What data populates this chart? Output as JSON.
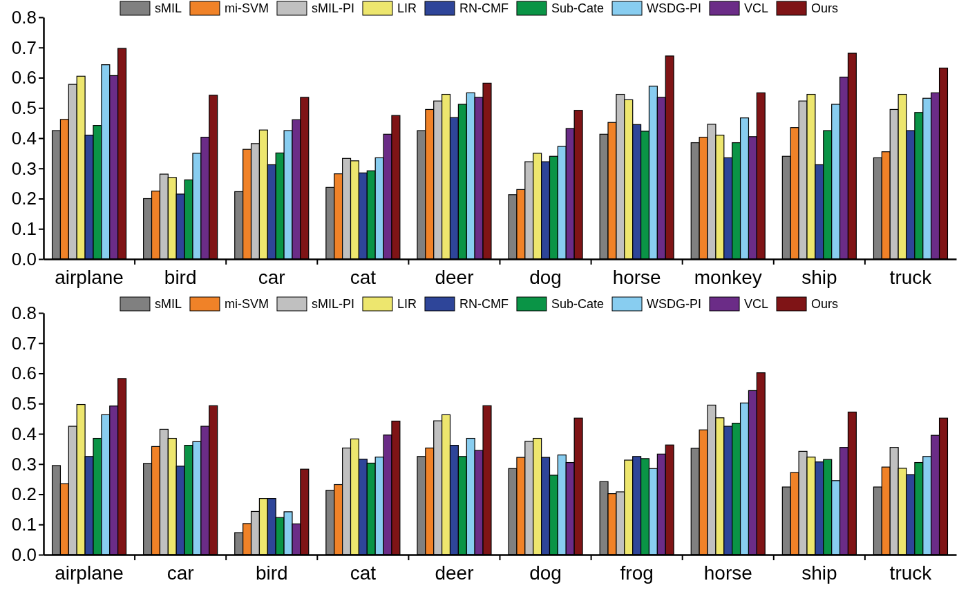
{
  "chart_data": [
    {
      "type": "bar",
      "categories": [
        "airplane",
        "bird",
        "car",
        "cat",
        "deer",
        "dog",
        "horse",
        "monkey",
        "ship",
        "truck"
      ],
      "ylim": [
        0,
        0.8
      ],
      "yticks": [
        {
          "value": 0,
          "label": "0.0"
        },
        {
          "value": 0.1,
          "label": "0.1"
        },
        {
          "value": 0.2,
          "label": "0.2"
        },
        {
          "value": 0.3,
          "label": "0.3"
        },
        {
          "value": 0.4,
          "label": "0.4"
        },
        {
          "value": 0.5,
          "label": "0.5"
        },
        {
          "value": 0.6,
          "label": "0.6"
        },
        {
          "value": 0.7,
          "label": "0.7"
        },
        {
          "value": 0.8,
          "label": "0.8"
        }
      ],
      "grid": false,
      "legend": "top",
      "series": [
        {
          "name": "sMIL",
          "color": "#808080",
          "values": [
            0.425,
            0.2,
            0.223,
            0.237,
            0.425,
            0.213,
            0.413,
            0.385,
            0.34,
            0.335
          ]
        },
        {
          "name": "mi-SVM",
          "color": "#f08228",
          "values": [
            0.462,
            0.225,
            0.363,
            0.282,
            0.495,
            0.23,
            0.452,
            0.403,
            0.435,
            0.355
          ]
        },
        {
          "name": "sMIL-PI",
          "color": "#c0c0c0",
          "values": [
            0.578,
            0.281,
            0.382,
            0.333,
            0.523,
            0.322,
            0.545,
            0.446,
            0.523,
            0.495
          ]
        },
        {
          "name": "LIR",
          "color": "#ede66e",
          "values": [
            0.605,
            0.27,
            0.427,
            0.325,
            0.545,
            0.35,
            0.527,
            0.41,
            0.545,
            0.545
          ]
        },
        {
          "name": "RN-CMF",
          "color": "#2e4599",
          "values": [
            0.41,
            0.215,
            0.312,
            0.285,
            0.468,
            0.322,
            0.445,
            0.335,
            0.312,
            0.425
          ]
        },
        {
          "name": "Sub-Cate",
          "color": "#0a9446",
          "values": [
            0.442,
            0.262,
            0.351,
            0.292,
            0.512,
            0.34,
            0.423,
            0.385,
            0.425,
            0.485
          ]
        },
        {
          "name": "WSDG-PI",
          "color": "#88cdf0",
          "values": [
            0.643,
            0.35,
            0.425,
            0.335,
            0.55,
            0.373,
            0.572,
            0.467,
            0.512,
            0.532
          ]
        },
        {
          "name": "VCL",
          "color": "#6b2c87",
          "values": [
            0.607,
            0.403,
            0.461,
            0.413,
            0.535,
            0.432,
            0.535,
            0.405,
            0.602,
            0.55
          ]
        },
        {
          "name": "Ours",
          "color": "#7f1416",
          "values": [
            0.697,
            0.542,
            0.535,
            0.475,
            0.582,
            0.492,
            0.672,
            0.55,
            0.681,
            0.632
          ]
        }
      ]
    },
    {
      "type": "bar",
      "categories": [
        "airplane",
        "car",
        "bird",
        "cat",
        "deer",
        "dog",
        "frog",
        "horse",
        "ship",
        "truck"
      ],
      "ylim": [
        0,
        0.8
      ],
      "yticks": [
        {
          "value": 0,
          "label": "0.0"
        },
        {
          "value": 0.1,
          "label": "0.1"
        },
        {
          "value": 0.2,
          "label": "0.2"
        },
        {
          "value": 0.3,
          "label": "0.3"
        },
        {
          "value": 0.4,
          "label": "0.4"
        },
        {
          "value": 0.5,
          "label": "0.5"
        },
        {
          "value": 0.6,
          "label": "0.6"
        },
        {
          "value": 0.7,
          "label": "0.7"
        },
        {
          "value": 0.8,
          "label": "0.8"
        }
      ],
      "grid": false,
      "legend": "top",
      "series": [
        {
          "name": "sMIL",
          "color": "#808080",
          "values": [
            0.295,
            0.302,
            0.073,
            0.213,
            0.325,
            0.285,
            0.242,
            0.352,
            0.224,
            0.224
          ]
        },
        {
          "name": "mi-SVM",
          "color": "#f08228",
          "values": [
            0.235,
            0.358,
            0.103,
            0.232,
            0.353,
            0.322,
            0.202,
            0.413,
            0.272,
            0.29
          ]
        },
        {
          "name": "sMIL-PI",
          "color": "#c0c0c0",
          "values": [
            0.425,
            0.415,
            0.143,
            0.353,
            0.443,
            0.375,
            0.208,
            0.495,
            0.342,
            0.355
          ]
        },
        {
          "name": "LIR",
          "color": "#ede66e",
          "values": [
            0.497,
            0.385,
            0.186,
            0.383,
            0.463,
            0.385,
            0.313,
            0.453,
            0.323,
            0.286
          ]
        },
        {
          "name": "RN-CMF",
          "color": "#2e4599",
          "values": [
            0.325,
            0.293,
            0.186,
            0.316,
            0.362,
            0.322,
            0.325,
            0.425,
            0.307,
            0.265
          ]
        },
        {
          "name": "Sub-Cate",
          "color": "#0a9446",
          "values": [
            0.385,
            0.362,
            0.123,
            0.303,
            0.325,
            0.263,
            0.318,
            0.435,
            0.315,
            0.305
          ]
        },
        {
          "name": "WSDG-PI",
          "color": "#88cdf0",
          "values": [
            0.463,
            0.374,
            0.142,
            0.323,
            0.385,
            0.33,
            0.285,
            0.502,
            0.245,
            0.325
          ]
        },
        {
          "name": "VCL",
          "color": "#6b2c87",
          "values": [
            0.492,
            0.425,
            0.102,
            0.396,
            0.345,
            0.305,
            0.333,
            0.543,
            0.355,
            0.395
          ]
        },
        {
          "name": "Ours",
          "color": "#7f1416",
          "values": [
            0.583,
            0.493,
            0.283,
            0.442,
            0.493,
            0.452,
            0.363,
            0.602,
            0.472,
            0.452
          ]
        }
      ]
    }
  ]
}
